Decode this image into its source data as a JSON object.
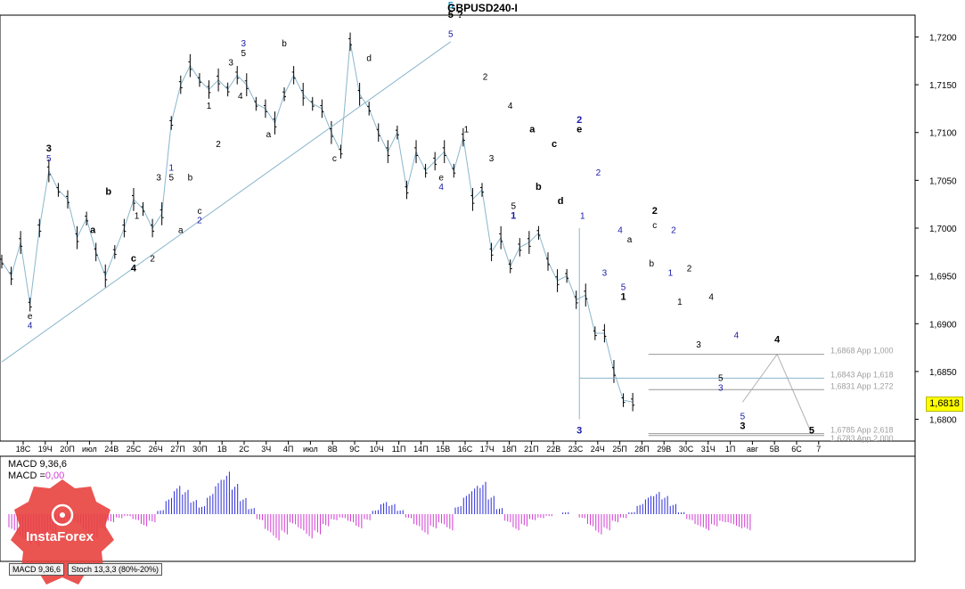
{
  "title": "GBPUSD240-I",
  "price_label": "1,6818",
  "macd_line1": "MACD 9,36,6",
  "macd_line2_prefix": "MACD =",
  "macd_line2_value": "0,00",
  "tabs": [
    "MACD 9,36,6",
    "Stoch 13,3,3 (80%-20%)"
  ],
  "logo": "InstaForex",
  "chart_data": {
    "type": "line",
    "title": "GBPUSD240-I",
    "ylim": [
      1.678,
      1.722
    ],
    "y_ticks": [
      "1,7200",
      "1,7150",
      "1,7100",
      "1,7050",
      "1,7000",
      "1,6950",
      "1,6900",
      "1,6850",
      "1,6800"
    ],
    "x_ticks": [
      "18С",
      "19Ч",
      "20П",
      "июл",
      "24В",
      "25С",
      "26Ч",
      "27П",
      "30П",
      "1В",
      "2С",
      "3Ч",
      "4П",
      "июл",
      "8В",
      "9С",
      "10Ч",
      "11П",
      "14П",
      "15В",
      "16С",
      "17Ч",
      "18П",
      "21П",
      "22В",
      "23С",
      "24Ч",
      "25П",
      "28П",
      "29В",
      "30С",
      "31Ч",
      "1П",
      "авг",
      "5В",
      "6С",
      "7"
    ],
    "price_path": [
      [
        0,
        1.6965
      ],
      [
        3,
        1.695
      ],
      [
        6,
        1.6985
      ],
      [
        9,
        1.692
      ],
      [
        12,
        1.7
      ],
      [
        15,
        1.706
      ],
      [
        18,
        1.704
      ],
      [
        21,
        1.703
      ],
      [
        24,
        1.699
      ],
      [
        27,
        1.701
      ],
      [
        30,
        1.6975
      ],
      [
        33,
        1.695
      ],
      [
        36,
        1.6975
      ],
      [
        39,
        1.7
      ],
      [
        42,
        1.703
      ],
      [
        45,
        1.702
      ],
      [
        48,
        1.7
      ],
      [
        51,
        1.7015
      ],
      [
        54,
        1.711
      ],
      [
        57,
        1.715
      ],
      [
        60,
        1.717
      ],
      [
        63,
        1.7155
      ],
      [
        66,
        1.7145
      ],
      [
        69,
        1.7155
      ],
      [
        72,
        1.7145
      ],
      [
        75,
        1.716
      ],
      [
        78,
        1.715
      ],
      [
        81,
        1.713
      ],
      [
        84,
        1.7125
      ],
      [
        87,
        1.711
      ],
      [
        90,
        1.714
      ],
      [
        93,
        1.716
      ],
      [
        96,
        1.714
      ],
      [
        99,
        1.713
      ],
      [
        102,
        1.7125
      ],
      [
        105,
        1.71
      ],
      [
        108,
        1.708
      ],
      [
        111,
        1.7195
      ],
      [
        114,
        1.714
      ],
      [
        117,
        1.7125
      ],
      [
        120,
        1.71
      ],
      [
        123,
        1.708
      ],
      [
        126,
        1.71
      ],
      [
        129,
        1.704
      ],
      [
        132,
        1.708
      ],
      [
        135,
        1.706
      ],
      [
        138,
        1.707
      ],
      [
        141,
        1.708
      ],
      [
        144,
        1.706
      ],
      [
        147,
        1.7095
      ],
      [
        150,
        1.703
      ],
      [
        153,
        1.704
      ],
      [
        156,
        1.6975
      ],
      [
        159,
        1.699
      ],
      [
        162,
        1.696
      ],
      [
        165,
        1.698
      ],
      [
        168,
        1.6985
      ],
      [
        171,
        1.6995
      ],
      [
        174,
        1.6965
      ],
      [
        177,
        1.6945
      ],
      [
        180,
        1.695
      ],
      [
        183,
        1.6925
      ],
      [
        186,
        1.693
      ],
      [
        189,
        1.689
      ],
      [
        192,
        1.689
      ],
      [
        195,
        1.685
      ],
      [
        198,
        1.682
      ],
      [
        201,
        1.6818
      ]
    ],
    "levels": [
      {
        "value": 1.6868,
        "label": "1,6868 App 1,000"
      },
      {
        "value": 1.6843,
        "label": "1,6843 App 1,618"
      },
      {
        "value": 1.6831,
        "label": "1,6831 App 1,272"
      },
      {
        "value": 1.6785,
        "label": "1,6785 App 2,618"
      },
      {
        "value": 1.6783,
        "label": "1,6783 App 2,000"
      }
    ],
    "wave_labels": [
      {
        "text": "3",
        "x": 15,
        "y": 1.708,
        "color": "#000000",
        "bold": true
      },
      {
        "text": "5",
        "x": 15,
        "y": 1.707,
        "color": "#1a1aa6",
        "bold": false
      },
      {
        "text": "e",
        "x": 9,
        "y": 1.6905,
        "color": "#000000",
        "bold": false
      },
      {
        "text": "4",
        "x": 9,
        "y": 1.6895,
        "color": "#1a1aa6",
        "bold": false
      },
      {
        "text": "b",
        "x": 34,
        "y": 1.7035,
        "color": "#000000",
        "bold": true
      },
      {
        "text": "a",
        "x": 29,
        "y": 1.6995,
        "color": "#000000",
        "bold": true
      },
      {
        "text": "c",
        "x": 42,
        "y": 1.6965,
        "color": "#000000",
        "bold": true
      },
      {
        "text": "4",
        "x": 42,
        "y": 1.6955,
        "color": "#000000",
        "bold": true
      },
      {
        "text": "2",
        "x": 48,
        "y": 1.6965,
        "color": "#000000",
        "bold": false
      },
      {
        "text": "1",
        "x": 43,
        "y": 1.701,
        "color": "#000000",
        "bold": false
      },
      {
        "text": "1",
        "x": 54,
        "y": 1.706,
        "color": "#1a1aa6",
        "bold": false
      },
      {
        "text": "5",
        "x": 54,
        "y": 1.705,
        "color": "#000000",
        "bold": false
      },
      {
        "text": "3",
        "x": 50,
        "y": 1.705,
        "color": "#000000",
        "bold": false
      },
      {
        "text": "b",
        "x": 60,
        "y": 1.705,
        "color": "#000000",
        "bold": false
      },
      {
        "text": "a",
        "x": 57,
        "y": 1.6995,
        "color": "#000000",
        "bold": false
      },
      {
        "text": "c",
        "x": 63,
        "y": 1.7015,
        "color": "#000000",
        "bold": false
      },
      {
        "text": "2",
        "x": 63,
        "y": 1.7005,
        "color": "#1a1aa6",
        "bold": false
      },
      {
        "text": "1",
        "x": 66,
        "y": 1.7125,
        "color": "#000000",
        "bold": false
      },
      {
        "text": "2",
        "x": 69,
        "y": 1.7085,
        "color": "#000000",
        "bold": false
      },
      {
        "text": "3",
        "x": 77,
        "y": 1.719,
        "color": "#1a1aa6",
        "bold": false
      },
      {
        "text": "3",
        "x": 73,
        "y": 1.717,
        "color": "#000000",
        "bold": false
      },
      {
        "text": "5",
        "x": 77,
        "y": 1.718,
        "color": "#000000",
        "bold": false
      },
      {
        "text": "4",
        "x": 76,
        "y": 1.7135,
        "color": "#000000",
        "bold": false
      },
      {
        "text": "b",
        "x": 90,
        "y": 1.719,
        "color": "#000000",
        "bold": false
      },
      {
        "text": "a",
        "x": 85,
        "y": 1.7095,
        "color": "#000000",
        "bold": false
      },
      {
        "text": "c",
        "x": 106,
        "y": 1.707,
        "color": "#000000",
        "bold": false
      },
      {
        "text": "d",
        "x": 117,
        "y": 1.7175,
        "color": "#000000",
        "bold": false
      },
      {
        "text": "e",
        "x": 140,
        "y": 1.705,
        "color": "#000000",
        "bold": false
      },
      {
        "text": "4",
        "x": 140,
        "y": 1.704,
        "color": "#1a1aa6",
        "bold": false
      },
      {
        "text": "5",
        "x": 143,
        "y": 1.723,
        "color": "#1a9fd0",
        "bold": true
      },
      {
        "text": "5",
        "x": 143,
        "y": 1.722,
        "color": "#000000",
        "bold": true
      },
      {
        "text": "?",
        "x": 146,
        "y": 1.722,
        "color": "#000000",
        "bold": true
      },
      {
        "text": "5",
        "x": 143,
        "y": 1.72,
        "color": "#1a1aa6",
        "bold": false
      },
      {
        "text": "2",
        "x": 154,
        "y": 1.7155,
        "color": "#000000",
        "bold": false
      },
      {
        "text": "1",
        "x": 148,
        "y": 1.71,
        "color": "#000000",
        "bold": false
      },
      {
        "text": "3",
        "x": 156,
        "y": 1.707,
        "color": "#000000",
        "bold": false
      },
      {
        "text": "4",
        "x": 162,
        "y": 1.7125,
        "color": "#000000",
        "bold": false
      },
      {
        "text": "5",
        "x": 163,
        "y": 1.702,
        "color": "#000000",
        "bold": false
      },
      {
        "text": "1",
        "x": 163,
        "y": 1.701,
        "color": "#1a1aa6",
        "bold": true
      },
      {
        "text": "a",
        "x": 169,
        "y": 1.71,
        "color": "#000000",
        "bold": true
      },
      {
        "text": "b",
        "x": 171,
        "y": 1.704,
        "color": "#000000",
        "bold": true
      },
      {
        "text": "c",
        "x": 176,
        "y": 1.7085,
        "color": "#000000",
        "bold": true
      },
      {
        "text": "d",
        "x": 178,
        "y": 1.7025,
        "color": "#000000",
        "bold": true
      },
      {
        "text": "2",
        "x": 184,
        "y": 1.711,
        "color": "#1a1aa6",
        "bold": true
      },
      {
        "text": "e",
        "x": 184,
        "y": 1.71,
        "color": "#000000",
        "bold": true
      },
      {
        "text": "2",
        "x": 190,
        "y": 1.7055,
        "color": "#1a1aa6",
        "bold": false
      },
      {
        "text": "1",
        "x": 185,
        "y": 1.701,
        "color": "#1a1aa6",
        "bold": false
      },
      {
        "text": "3",
        "x": 192,
        "y": 1.695,
        "color": "#1a1aa6",
        "bold": false
      },
      {
        "text": "4",
        "x": 197,
        "y": 1.6995,
        "color": "#1a1aa6",
        "bold": false
      },
      {
        "text": "a",
        "x": 200,
        "y": 1.6985,
        "color": "#000000",
        "bold": false
      },
      {
        "text": "5",
        "x": 198,
        "y": 1.6935,
        "color": "#1a1aa6",
        "bold": false
      },
      {
        "text": "1",
        "x": 198,
        "y": 1.6925,
        "color": "#000000",
        "bold": true
      },
      {
        "text": "2",
        "x": 208,
        "y": 1.7015,
        "color": "#000000",
        "bold": true
      },
      {
        "text": "c",
        "x": 208,
        "y": 1.7,
        "color": "#000000",
        "bold": false
      },
      {
        "text": "b",
        "x": 207,
        "y": 1.696,
        "color": "#000000",
        "bold": false
      },
      {
        "text": "2",
        "x": 214,
        "y": 1.6995,
        "color": "#1a1aa6",
        "bold": false
      },
      {
        "text": "1",
        "x": 213,
        "y": 1.695,
        "color": "#1a1aa6",
        "bold": false
      },
      {
        "text": "2",
        "x": 219,
        "y": 1.6955,
        "color": "#000000",
        "bold": false
      },
      {
        "text": "1",
        "x": 216,
        "y": 1.692,
        "color": "#000000",
        "bold": false
      },
      {
        "text": "4",
        "x": 226,
        "y": 1.6925,
        "color": "#000000",
        "bold": false
      },
      {
        "text": "3",
        "x": 222,
        "y": 1.6875,
        "color": "#000000",
        "bold": false
      },
      {
        "text": "4",
        "x": 234,
        "y": 1.6885,
        "color": "#1a1aa6",
        "bold": false
      },
      {
        "text": "5",
        "x": 229,
        "y": 1.684,
        "color": "#000000",
        "bold": false
      },
      {
        "text": "3",
        "x": 229,
        "y": 1.683,
        "color": "#1a1aa6",
        "bold": false
      },
      {
        "text": "5",
        "x": 236,
        "y": 1.68,
        "color": "#1a1aa6",
        "bold": false
      },
      {
        "text": "3",
        "x": 236,
        "y": 1.679,
        "color": "#000000",
        "bold": true
      },
      {
        "text": "4",
        "x": 247,
        "y": 1.688,
        "color": "#000000",
        "bold": true
      },
      {
        "text": "5",
        "x": 258,
        "y": 1.6785,
        "color": "#000000",
        "bold": true
      },
      {
        "text": "3",
        "x": 184,
        "y": 1.6785,
        "color": "#1a1aa6",
        "bold": true
      }
    ],
    "macd": {
      "title": "MACD 9,36,6",
      "ylim": [
        -0.0025,
        0.0025
      ],
      "values": [
        -0.0008,
        -0.0012,
        -0.0015,
        -0.0016,
        -0.0013,
        -0.001,
        -0.0006,
        -0.0003,
        -0.0005,
        -0.0009,
        -0.0012,
        -0.0008,
        -0.0004,
        -0.0002,
        -0.0001,
        -0.0003,
        -0.0006,
        -0.0004,
        0.0002,
        0.0008,
        0.0014,
        0.0012,
        0.0007,
        0.0004,
        0.001,
        0.0017,
        0.0021,
        0.0015,
        0.0008,
        0.0003,
        -0.0003,
        -0.0009,
        -0.0013,
        -0.001,
        -0.0005,
        -0.0008,
        -0.0012,
        -0.001,
        -0.0006,
        -0.0003,
        -0.0002,
        -0.0004,
        -0.0007,
        -0.0003,
        0.0002,
        0.0006,
        0.0005,
        0.0002,
        -0.0002,
        -0.0006,
        -0.001,
        -0.0007,
        -0.0005,
        -0.0008,
        0.0004,
        0.001,
        0.0014,
        0.0016,
        0.0009,
        0.0003,
        -0.0004,
        -0.0008,
        -0.0006,
        -0.0003,
        -0.0002,
        -0.0001,
        0.0,
        0.0001,
        0.0,
        -0.0002,
        -0.0006,
        -0.001,
        -0.0008,
        -0.0004,
        -0.0002,
        0.0001,
        0.0005,
        0.0009,
        0.0011,
        0.0009,
        0.0005,
        0.0001,
        -0.0003,
        -0.0006,
        -0.0008,
        -0.0006,
        -0.0004,
        -0.0005,
        -0.0007,
        -0.0008
      ]
    }
  }
}
